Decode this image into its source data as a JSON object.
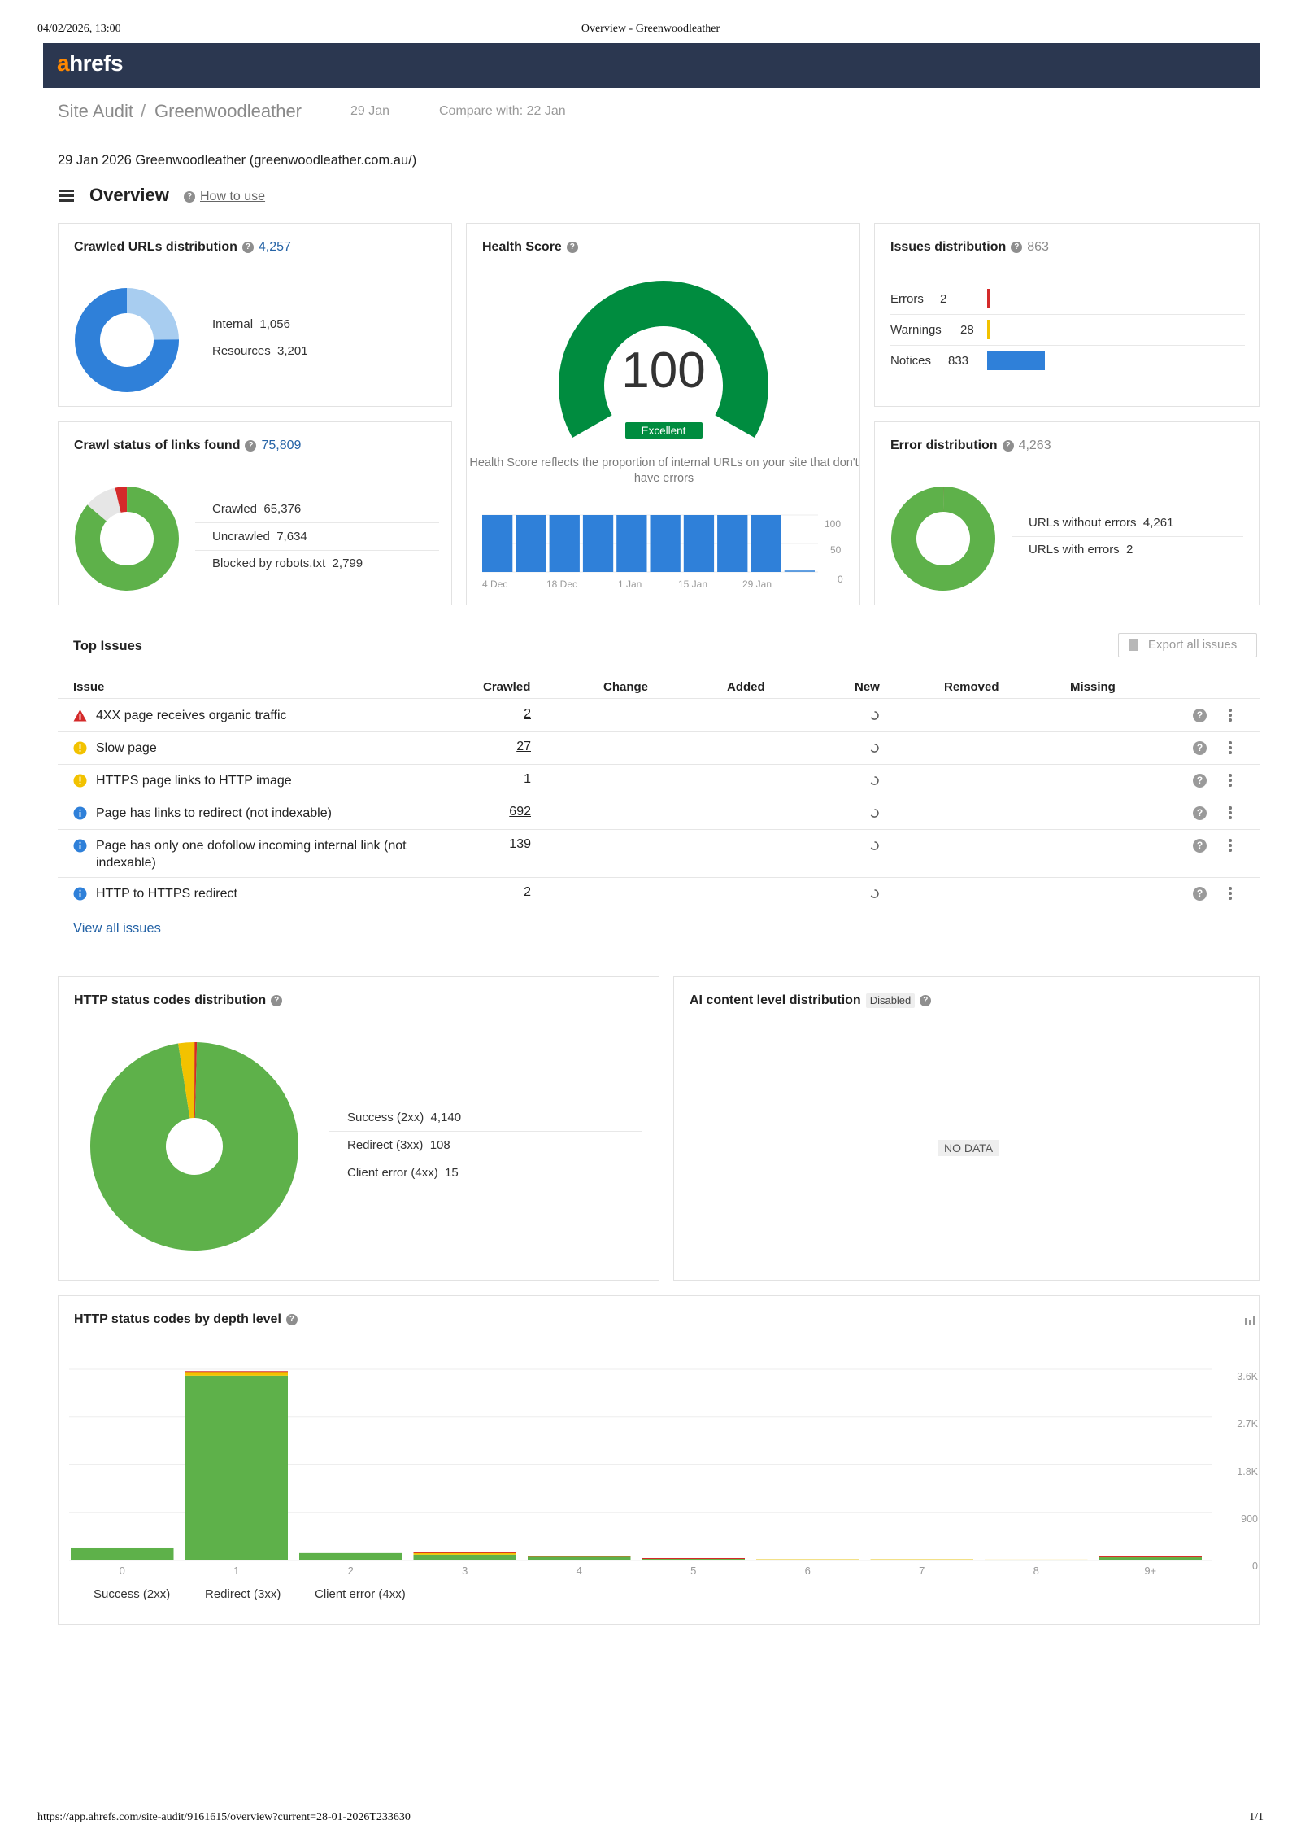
{
  "print_header": {
    "datetime": "04/02/2026, 13:00",
    "title": "Overview - Greenwoodleather"
  },
  "print_footer": {
    "url": "https://app.ahrefs.com/site-audit/9161615/overview?current=28-01-2026T233630",
    "page": "1/1"
  },
  "brand": {
    "logo_a": "a",
    "logo_rest": "hrefs",
    "accent": "#ff8800",
    "topbar_bg": "#2b3750"
  },
  "breadcrumb": {
    "section": "Site Audit",
    "separator": "/",
    "project": "Greenwoodleather",
    "date": "29 Jan",
    "compare": "Compare with: 22 Jan"
  },
  "site_line": "29 Jan 2026 Greenwoodleather (greenwoodleather.com.au/)",
  "overview": {
    "title": "Overview",
    "how_to_use": "How to use"
  },
  "colors": {
    "blue": "#2f80d9",
    "light_blue": "#a8cdf0",
    "green": "#5eb14a",
    "dark_green": "#008c3f",
    "red": "#d42a2a",
    "yellow": "#f2c200",
    "light_gray": "#e6e6e6"
  },
  "crawled_urls": {
    "title": "Crawled URLs distribution",
    "total": "4,257",
    "items": [
      {
        "label": "Internal",
        "value": "1,056",
        "num": 1056
      },
      {
        "label": "Resources",
        "value": "3,201",
        "num": 3201
      }
    ]
  },
  "health_score": {
    "title": "Health Score",
    "score": "100",
    "score_num": 100,
    "badge": "Excellent",
    "description": "Health Score reflects the proportion of internal URLs on your site that don't have errors",
    "y_ticks": [
      "100",
      "50",
      "0"
    ],
    "x_ticks": [
      "4 Dec",
      "18 Dec",
      "1 Jan",
      "15 Jan",
      "29 Jan"
    ]
  },
  "issues_distribution": {
    "title": "Issues distribution",
    "total": "863",
    "items": [
      {
        "label": "Errors",
        "value": "2",
        "num": 2,
        "color": "#d42a2a"
      },
      {
        "label": "Warnings",
        "value": "28",
        "num": 28,
        "color": "#f2c200"
      },
      {
        "label": "Notices",
        "value": "833",
        "num": 833,
        "color": "#2f80d9"
      }
    ]
  },
  "crawl_status": {
    "title": "Crawl status of links found",
    "total": "75,809",
    "items": [
      {
        "label": "Crawled",
        "value": "65,376",
        "num": 65376
      },
      {
        "label": "Uncrawled",
        "value": "7,634",
        "num": 7634
      },
      {
        "label": "Blocked by robots.txt",
        "value": "2,799",
        "num": 2799
      }
    ]
  },
  "error_distribution": {
    "title": "Error distribution",
    "total": "4,263",
    "items": [
      {
        "label": "URLs without errors",
        "value": "4,261",
        "num": 4261
      },
      {
        "label": "URLs with errors",
        "value": "2",
        "num": 2
      }
    ]
  },
  "top_issues": {
    "title": "Top Issues",
    "export": "Export all issues",
    "columns": [
      "Issue",
      "Crawled",
      "Change",
      "Added",
      "New",
      "Removed",
      "Missing"
    ],
    "rows": [
      {
        "severity": "error",
        "issue": "4XX page receives organic traffic",
        "crawled": "2"
      },
      {
        "severity": "warning",
        "issue": "Slow page",
        "crawled": "27"
      },
      {
        "severity": "warning",
        "issue": "HTTPS page links to HTTP image",
        "crawled": "1"
      },
      {
        "severity": "notice",
        "issue": "Page has links to redirect (not indexable)",
        "crawled": "692"
      },
      {
        "severity": "notice",
        "issue": "Page has only one dofollow incoming internal link (not indexable)",
        "crawled": "139"
      },
      {
        "severity": "notice",
        "issue": "HTTP to HTTPS redirect",
        "crawled": "2"
      }
    ],
    "view_all": "View all issues"
  },
  "http_status": {
    "title": "HTTP status codes distribution",
    "items": [
      {
        "label": "Success (2xx)",
        "value": "4,140",
        "num": 4140
      },
      {
        "label": "Redirect (3xx)",
        "value": "108",
        "num": 108
      },
      {
        "label": "Client error (4xx)",
        "value": "15",
        "num": 15
      }
    ]
  },
  "ai_content": {
    "title": "AI content level distribution",
    "badge": "Disabled",
    "no_data": "NO DATA"
  },
  "depth": {
    "title": "HTTP status codes by depth level",
    "legend": [
      "Success (2xx)",
      "Redirect (3xx)",
      "Client error (4xx)"
    ],
    "y_ticks": [
      "3.6K",
      "2.7K",
      "1.8K",
      "900",
      "0"
    ],
    "x_ticks": [
      "0",
      "1",
      "2",
      "3",
      "4",
      "5",
      "6",
      "7",
      "8",
      "9+"
    ]
  },
  "chart_data": [
    {
      "type": "bar",
      "title": "Health Score",
      "categories": [
        "4 Dec",
        "",
        "18 Dec",
        "",
        "1 Jan",
        "",
        "15 Jan",
        "",
        "29 Jan",
        ""
      ],
      "values": [
        100,
        100,
        100,
        100,
        100,
        100,
        100,
        100,
        100,
        0
      ],
      "ylim": [
        0,
        100
      ]
    },
    {
      "type": "bar",
      "title": "HTTP status codes by depth level",
      "categories": [
        "0",
        "1",
        "2",
        "3",
        "4",
        "5",
        "6",
        "7",
        "8",
        "9+"
      ],
      "series": [
        {
          "name": "Success (2xx)",
          "values": [
            230,
            3480,
            140,
            110,
            70,
            40,
            20,
            20,
            15,
            70
          ]
        },
        {
          "name": "Redirect (3xx)",
          "values": [
            0,
            80,
            0,
            40,
            15,
            5,
            2,
            2,
            2,
            5
          ]
        },
        {
          "name": "Client error (4xx)",
          "values": [
            0,
            5,
            0,
            5,
            2,
            1,
            0,
            0,
            0,
            1
          ]
        }
      ],
      "ylim": [
        0,
        3600
      ]
    }
  ]
}
